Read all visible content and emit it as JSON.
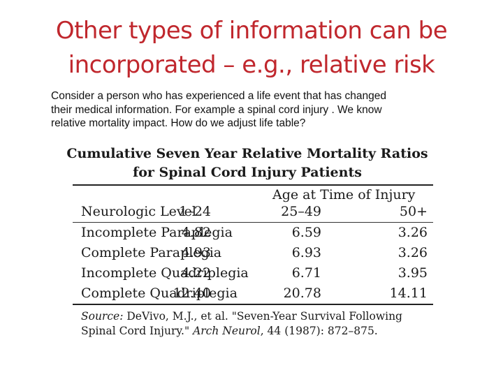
{
  "slide": {
    "title_line1": "Other types of information can be",
    "title_line2": "incorporated – e.g., relative risk",
    "body_line1": "Consider a  person who has experienced a life event that has changed",
    "body_line2": "their medical information.  For example a  spinal cord injury .  We know",
    "body_line3": "relative mortality impact.  How do we adjust life table?"
  },
  "table": {
    "title_line1": "Cumulative Seven Year Relative Mortality Ratios",
    "title_line2": "for Spinal Cord Injury Patients",
    "age_header": "Age at Time of Injury",
    "columns": [
      "Neurologic Level",
      "1–24",
      "25–49",
      "50+"
    ],
    "rows": [
      [
        "Incomplete Paraplegia",
        "4.82",
        "6.59",
        "3.26"
      ],
      [
        "Complete Paraplegia",
        "4.93",
        "6.93",
        "3.26"
      ],
      [
        "Incomplete Quadriplegia",
        "4.22",
        "6.71",
        "3.95"
      ],
      [
        "Complete Quadriplegia",
        "12.40",
        "20.78",
        "14.11"
      ]
    ],
    "source_label": "Source:",
    "source_authors": "DeVivo, M.J., et al. \"Seven-Year Survival Following",
    "source_title_end": "Spinal Cord Injury.\"",
    "source_journal": "Arch Neurol",
    "source_details": ", 44 (1987): 872–875."
  }
}
